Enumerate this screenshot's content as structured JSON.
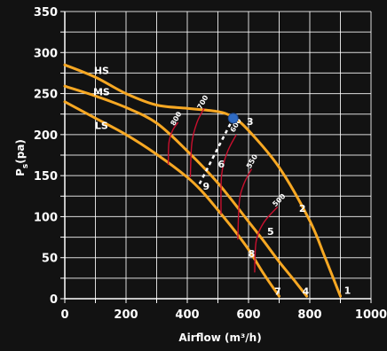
{
  "chart_data": {
    "type": "line",
    "title": "",
    "xlabel": "Airflow (m³/h)",
    "ylabel": "Ps(pa)",
    "ylabel_main": "P",
    "ylabel_sub": "s",
    "ylabel_rest": "(pa)",
    "xlim": [
      0,
      1000
    ],
    "ylim": [
      0,
      350
    ],
    "x_ticks": [
      0,
      200,
      400,
      600,
      800,
      1000
    ],
    "y_ticks": [
      0,
      50,
      100,
      150,
      200,
      250,
      300,
      350
    ],
    "grid": true,
    "colors": {
      "background": "#121212",
      "fan_curve": "#f7a823",
      "rpm_curve": "#c8102e",
      "grid": "#ffffff",
      "operating_point": "#2f6bc4",
      "system_line": "#ffffff"
    },
    "fan_series": [
      {
        "name": "HS",
        "label_at": [
          120,
          278
        ],
        "points": [
          [
            0,
            285
          ],
          [
            100,
            270
          ],
          [
            200,
            250
          ],
          [
            300,
            236
          ],
          [
            400,
            232
          ],
          [
            500,
            228
          ],
          [
            550,
            221
          ],
          [
            600,
            205
          ],
          [
            700,
            160
          ],
          [
            800,
            95
          ],
          [
            850,
            50
          ],
          [
            900,
            3
          ]
        ]
      },
      {
        "name": "MS",
        "label_at": [
          120,
          252
        ],
        "points": [
          [
            0,
            259
          ],
          [
            100,
            247
          ],
          [
            200,
            233
          ],
          [
            300,
            214
          ],
          [
            400,
            180
          ],
          [
            500,
            141
          ],
          [
            600,
            94
          ],
          [
            650,
            70
          ],
          [
            700,
            45
          ],
          [
            750,
            22
          ],
          [
            790,
            3
          ]
        ]
      },
      {
        "name": "LS",
        "label_at": [
          120,
          211
        ],
        "points": [
          [
            0,
            240
          ],
          [
            100,
            220
          ],
          [
            200,
            200
          ],
          [
            300,
            176
          ],
          [
            400,
            148
          ],
          [
            450,
            130
          ],
          [
            500,
            108
          ],
          [
            550,
            85
          ],
          [
            600,
            60
          ],
          [
            650,
            30
          ],
          [
            700,
            3
          ]
        ]
      }
    ],
    "rpm_series": [
      {
        "name": "800",
        "label_at": [
          370,
          218
        ],
        "label_angle": -60,
        "points": [
          [
            338,
            163
          ],
          [
            340,
            190
          ],
          [
            352,
            205
          ],
          [
            370,
            215
          ]
        ]
      },
      {
        "name": "700",
        "label_at": [
          457,
          238
        ],
        "label_angle": -60,
        "points": [
          [
            410,
            148
          ],
          [
            415,
            190
          ],
          [
            432,
            215
          ],
          [
            455,
            232
          ]
        ]
      },
      {
        "name": "600",
        "label_at": [
          565,
          210
        ],
        "label_angle": -60,
        "points": [
          [
            510,
            103
          ],
          [
            512,
            150
          ],
          [
            530,
            178
          ],
          [
            560,
            200
          ]
        ]
      },
      {
        "name": "550",
        "label_at": [
          618,
          166
        ],
        "label_angle": -60,
        "points": [
          [
            565,
            72
          ],
          [
            570,
            118
          ],
          [
            585,
            140
          ],
          [
            610,
            158
          ]
        ]
      },
      {
        "name": "500",
        "label_at": [
          705,
          118
        ],
        "label_angle": -45,
        "points": [
          [
            620,
            32
          ],
          [
            625,
            70
          ],
          [
            650,
            93
          ],
          [
            695,
            112
          ]
        ]
      }
    ],
    "system_curve": {
      "points": [
        [
          440,
          140
        ],
        [
          550,
          220
        ]
      ],
      "dashed": true
    },
    "operating_point": {
      "x": 550,
      "y": 220
    },
    "points": [
      {
        "label": "1",
        "x": 923,
        "y": 10
      },
      {
        "label": "2",
        "x": 776,
        "y": 110
      },
      {
        "label": "3",
        "x": 605,
        "y": 216
      },
      {
        "label": "4",
        "x": 787,
        "y": 9
      },
      {
        "label": "5",
        "x": 672,
        "y": 82
      },
      {
        "label": "6",
        "x": 511,
        "y": 164
      },
      {
        "label": "7",
        "x": 695,
        "y": 9
      },
      {
        "label": "8",
        "x": 610,
        "y": 55
      },
      {
        "label": "9",
        "x": 462,
        "y": 137
      }
    ]
  }
}
